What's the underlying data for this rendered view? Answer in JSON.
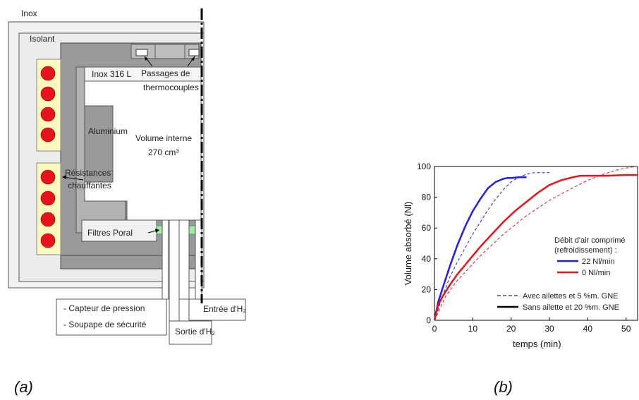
{
  "figure_a": {
    "caption": "(a)",
    "labels": {
      "inox": "Inox",
      "isolant": "Isolant",
      "inox316": "Inox 316 L",
      "passages_1": "Passages de",
      "passages_2": "thermocouples",
      "aluminium": "Aluminium",
      "volume_1": "Volume interne",
      "volume_2": "270 cm³",
      "resist_1": "Résistances",
      "resist_2": "chauffantes",
      "filtres": "Filtres Poral",
      "capteur": "- Capteur de pression",
      "soupape": "- Soupape de sécurité",
      "entree": "Entrée d'H₂",
      "sortie": "Sortie d'H₂"
    },
    "colors": {
      "heater": "#e8141b",
      "heater_panel": "#fcf8c0",
      "aluminium": "#b3b3b3",
      "filter": "#a8e6a0"
    }
  },
  "figure_b": {
    "caption": "(b)",
    "chart_data": {
      "type": "line",
      "xlabel": "temps (min)",
      "ylabel": "Volume absorbé (Nl)",
      "xlim": [
        0,
        53
      ],
      "ylim": [
        0,
        100
      ],
      "xticks": [
        0,
        10,
        20,
        30,
        40,
        50
      ],
      "yticks": [
        0,
        20,
        40,
        60,
        80,
        100
      ],
      "legend_title_1": "Débit d'air comprimé",
      "legend_title_2": "(refroidissement) :",
      "legend_color_entries": [
        {
          "label": "22 Nl/min",
          "color": "#1f1fe6"
        },
        {
          "label": "0 Nl/min",
          "color": "#e6141b"
        }
      ],
      "legend_style_entries": [
        {
          "label": "Avec ailettes et 5 %m. GNE",
          "dash": "dashed"
        },
        {
          "label": "Sans ailette et 20 %m. GNE",
          "dash": "solid"
        }
      ],
      "series": [
        {
          "color": "#1f1fe6",
          "dash": "solid",
          "x": [
            0,
            1,
            2,
            4,
            6,
            8,
            10,
            12,
            14,
            16,
            18,
            19,
            20,
            22,
            24
          ],
          "y": [
            0,
            12,
            20,
            35,
            49,
            61,
            71,
            79,
            86,
            90,
            92,
            92.5,
            92.5,
            93,
            93
          ]
        },
        {
          "color": "#1f1fe6",
          "dash": "dashed",
          "x": [
            0,
            2,
            4,
            6,
            8,
            10,
            12,
            14,
            16,
            18,
            20,
            22,
            24,
            26,
            28,
            30
          ],
          "y": [
            0,
            15,
            28,
            38,
            47,
            56,
            64,
            72,
            79,
            85,
            90,
            93,
            95,
            96,
            96,
            96
          ]
        },
        {
          "color": "#e6141b",
          "dash": "solid",
          "x": [
            0,
            1,
            2,
            4,
            6,
            8,
            10,
            12,
            15,
            18,
            21,
            24,
            27,
            30,
            33,
            36,
            38,
            40,
            45,
            50,
            53
          ],
          "y": [
            0,
            10,
            15,
            23,
            30,
            36,
            42,
            48,
            56,
            64,
            71,
            77,
            83,
            88,
            91,
            93,
            94,
            94,
            94,
            94.5,
            94.5
          ]
        },
        {
          "color": "#e6141b",
          "dash": "dashed",
          "x": [
            0,
            3,
            6,
            9,
            12,
            15,
            18,
            21,
            24,
            27,
            30,
            33,
            36,
            40,
            44,
            48,
            51,
            53
          ],
          "y": [
            0,
            16,
            26,
            34,
            42,
            49,
            56,
            62,
            68,
            73,
            78,
            82,
            86,
            91,
            95,
            98,
            99.5,
            100
          ]
        }
      ]
    }
  }
}
